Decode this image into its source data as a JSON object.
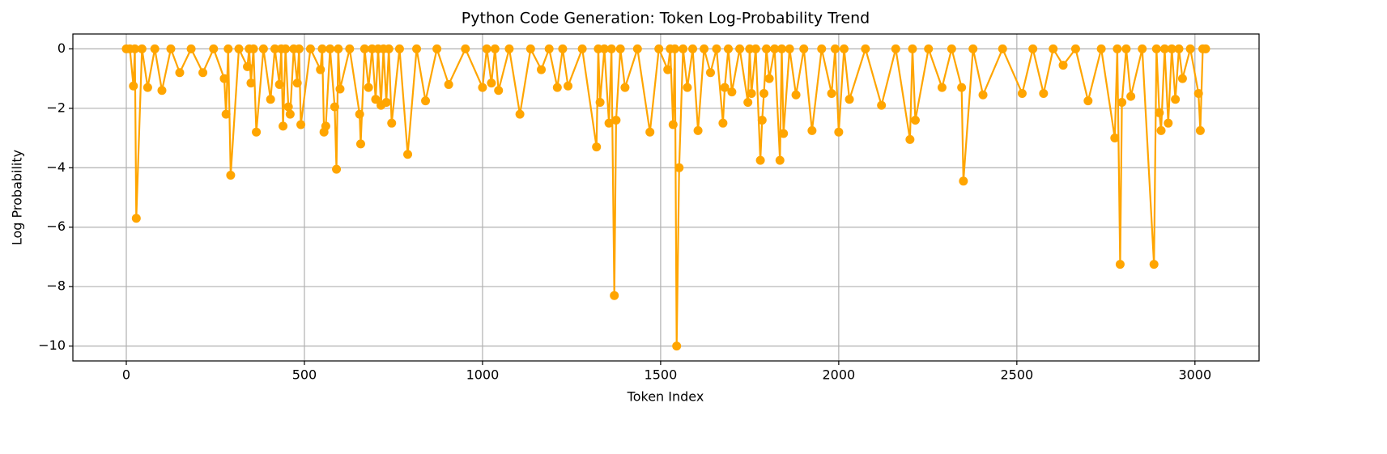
{
  "chart_data": {
    "type": "line",
    "title": "Python Code Generation: Token Log-Probability Trend",
    "xlabel": "Token Index",
    "ylabel": "Log Probability",
    "x": [
      0,
      10,
      20,
      24,
      28,
      44,
      60,
      80,
      100,
      125,
      150,
      182,
      215,
      245,
      275,
      280,
      286,
      293,
      316,
      340,
      345,
      350,
      357,
      365,
      385,
      405,
      417,
      430,
      435,
      440,
      447,
      455,
      460,
      470,
      480,
      485,
      490,
      517,
      545,
      550,
      555,
      560,
      572,
      585,
      590,
      595,
      600,
      627,
      655,
      658,
      669,
      680,
      690,
      700,
      707,
      715,
      722,
      730,
      737,
      745,
      767,
      790,
      815,
      840,
      872,
      905,
      952,
      1000,
      1012,
      1025,
      1035,
      1045,
      1075,
      1105,
      1135,
      1165,
      1187,
      1210,
      1225,
      1240,
      1280,
      1320,
      1325,
      1330,
      1342,
      1355,
      1362,
      1370,
      1375,
      1387,
      1400,
      1435,
      1470,
      1495,
      1520,
      1527,
      1535,
      1540,
      1545,
      1552,
      1563,
      1575,
      1590,
      1605,
      1622,
      1640,
      1657,
      1675,
      1680,
      1690,
      1700,
      1722,
      1745,
      1750,
      1755,
      1767,
      1780,
      1785,
      1790,
      1797,
      1805,
      1820,
      1835,
      1840,
      1845,
      1862,
      1880,
      1902,
      1925,
      1952,
      1980,
      1990,
      2000,
      2015,
      2030,
      2075,
      2120,
      2160,
      2200,
      2207,
      2215,
      2252,
      2290,
      2317,
      2345,
      2350,
      2377,
      2405,
      2460,
      2515,
      2545,
      2575,
      2602,
      2630,
      2665,
      2700,
      2737,
      2775,
      2782,
      2790,
      2795,
      2807,
      2820,
      2852,
      2885,
      2892,
      2900,
      2905,
      2915,
      2925,
      2935,
      2945,
      2955,
      2965,
      2987,
      3010,
      3015,
      3022,
      3030
    ],
    "series": [
      {
        "color": "#ffa500",
        "values": [
          0,
          0,
          -1.25,
          0,
          -5.7,
          0,
          -1.3,
          0,
          -1.4,
          0,
          -0.8,
          0,
          -0.8,
          0,
          -1.0,
          -2.2,
          0,
          -4.25,
          0,
          -0.6,
          0,
          -1.15,
          0,
          -2.8,
          0,
          -1.7,
          0,
          -1.2,
          0,
          -2.6,
          0,
          -1.95,
          -2.2,
          0,
          -1.15,
          0,
          -2.55,
          0,
          -0.7,
          0,
          -2.8,
          -2.6,
          0,
          -1.95,
          -4.05,
          0,
          -1.35,
          0,
          -2.2,
          -3.2,
          0,
          -1.3,
          0,
          -1.7,
          0,
          -1.9,
          0,
          -1.8,
          0,
          -2.5,
          0,
          -3.55,
          0,
          -1.75,
          0,
          -1.2,
          0,
          -1.3,
          0,
          -1.15,
          0,
          -1.4,
          0,
          -2.2,
          0,
          -0.7,
          0,
          -1.3,
          0,
          -1.25,
          0,
          -3.3,
          0,
          -1.8,
          0,
          -2.5,
          0,
          -8.3,
          -2.4,
          0,
          -1.3,
          0,
          -2.8,
          0,
          -0.7,
          0,
          -2.55,
          0,
          -10,
          -4,
          0,
          -1.3,
          0,
          -2.75,
          0,
          -0.8,
          0,
          -2.5,
          -1.3,
          0,
          -1.45,
          0,
          -1.8,
          0,
          -1.5,
          0,
          -3.75,
          -2.4,
          -1.5,
          0,
          -1.0,
          0,
          -3.75,
          0,
          -2.85,
          0,
          -1.55,
          0,
          -2.75,
          0,
          -1.5,
          0,
          -2.8,
          0,
          -1.7,
          0,
          -1.9,
          0,
          -3.05,
          0,
          -2.4,
          0,
          -1.3,
          0,
          -1.3,
          -4.45,
          0,
          -1.55,
          0,
          -1.5,
          0,
          -1.5,
          0,
          -0.55,
          0,
          -1.75,
          0,
          -3.0,
          0,
          -7.25,
          -1.8,
          0,
          -1.6,
          0,
          -7.25,
          0,
          -2.15,
          -2.75,
          0,
          -2.5,
          0,
          -1.7,
          0,
          -1.0,
          0,
          -1.5,
          -2.75,
          0,
          0
        ]
      }
    ],
    "xlim": [
      -150,
      3180
    ],
    "ylim": [
      -10.5,
      0.5
    ],
    "xticks": [
      0,
      500,
      1000,
      1500,
      2000,
      2500,
      3000
    ],
    "yticks": [
      {
        "value": -10,
        "label": "−10"
      },
      {
        "value": -8,
        "label": "−8"
      },
      {
        "value": -6,
        "label": "−6"
      },
      {
        "value": -4,
        "label": "−4"
      },
      {
        "value": -2,
        "label": "−2"
      },
      0
    ],
    "grid": true
  }
}
